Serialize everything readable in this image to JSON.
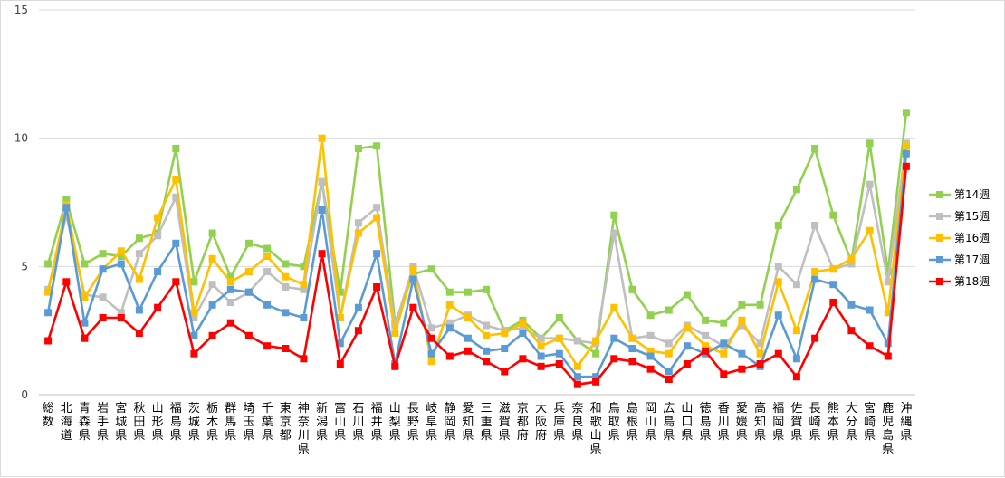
{
  "chart_data": {
    "type": "line",
    "title": "",
    "xlabel": "",
    "ylabel": "",
    "ylim": [
      0,
      15
    ],
    "yticks": [
      0,
      5,
      10,
      15
    ],
    "grid": true,
    "legend_position": "right",
    "categories": [
      "総数",
      "北海道",
      "青森県",
      "岩手県",
      "宮城県",
      "秋田県",
      "山形県",
      "福島県",
      "茨城県",
      "栃木県",
      "群馬県",
      "埼玉県",
      "千葉県",
      "東京都",
      "神奈川県",
      "新潟県",
      "富山県",
      "石川県",
      "福井県",
      "山梨県",
      "長野県",
      "岐阜県",
      "静岡県",
      "愛知県",
      "三重県",
      "滋賀県",
      "京都府",
      "大阪府",
      "兵庫県",
      "奈良県",
      "和歌山県",
      "鳥取県",
      "島根県",
      "岡山県",
      "広島県",
      "山口県",
      "徳島県",
      "香川県",
      "愛媛県",
      "高知県",
      "福岡県",
      "佐賀県",
      "長崎県",
      "熊本県",
      "大分県",
      "宮崎県",
      "鹿児島県",
      "沖縄県"
    ],
    "series": [
      {
        "name": "第14週",
        "color": "#92D050",
        "values": [
          5.1,
          7.6,
          5.1,
          5.5,
          5.4,
          6.1,
          6.3,
          9.6,
          4.4,
          6.3,
          4.6,
          5.9,
          5.7,
          5.1,
          5.0,
          8.3,
          4.0,
          9.6,
          9.7,
          2.8,
          4.7,
          4.9,
          4.0,
          4.0,
          4.1,
          2.5,
          2.9,
          2.2,
          3.0,
          2.1,
          1.6,
          7.0,
          4.1,
          3.1,
          3.3,
          3.9,
          2.9,
          2.8,
          3.5,
          3.5,
          6.6,
          8.0,
          9.6,
          7.0,
          5.2,
          9.8,
          4.8,
          11.0
        ]
      },
      {
        "name": "第15週",
        "color": "#BFBFBF",
        "values": [
          4.1,
          7.0,
          3.9,
          3.8,
          3.2,
          5.5,
          6.2,
          7.7,
          3.0,
          4.3,
          3.6,
          4.0,
          4.8,
          4.2,
          4.1,
          8.3,
          3.0,
          6.7,
          7.3,
          2.7,
          5.0,
          2.6,
          2.8,
          3.1,
          2.7,
          2.5,
          2.6,
          2.2,
          2.2,
          2.1,
          2.0,
          6.3,
          2.2,
          2.3,
          2.0,
          2.7,
          2.3,
          1.9,
          2.7,
          2.0,
          5.0,
          4.3,
          6.6,
          4.9,
          5.1,
          8.2,
          4.4,
          9.8
        ]
      },
      {
        "name": "第16週",
        "color": "#FFC000",
        "values": [
          4.0,
          7.4,
          3.8,
          4.9,
          5.6,
          4.5,
          6.9,
          8.4,
          3.2,
          5.3,
          4.4,
          4.8,
          5.4,
          4.6,
          4.3,
          10.0,
          3.0,
          6.3,
          6.9,
          2.4,
          4.9,
          1.3,
          3.5,
          3.0,
          2.3,
          2.4,
          2.8,
          1.9,
          2.2,
          1.1,
          2.1,
          3.4,
          2.2,
          1.7,
          1.6,
          2.6,
          1.9,
          1.6,
          2.9,
          1.6,
          4.4,
          2.5,
          4.8,
          4.9,
          5.3,
          6.4,
          3.2,
          9.7
        ]
      },
      {
        "name": "第17週",
        "color": "#5B9BD5",
        "values": [
          3.2,
          7.3,
          2.8,
          4.9,
          5.1,
          3.3,
          4.8,
          5.9,
          2.3,
          3.5,
          4.1,
          4.0,
          3.5,
          3.2,
          3.0,
          7.2,
          2.0,
          3.4,
          5.5,
          1.2,
          4.5,
          1.6,
          2.6,
          2.2,
          1.7,
          1.8,
          2.4,
          1.5,
          1.6,
          0.7,
          0.7,
          2.2,
          1.8,
          1.5,
          0.9,
          1.9,
          1.6,
          2.0,
          1.6,
          1.1,
          3.1,
          1.4,
          4.5,
          4.3,
          3.5,
          3.3,
          2.0,
          9.4
        ]
      },
      {
        "name": "第18週",
        "color": "#FF0000",
        "values": [
          2.1,
          4.4,
          2.2,
          3.0,
          3.0,
          2.4,
          3.4,
          4.4,
          1.6,
          2.3,
          2.8,
          2.3,
          1.9,
          1.8,
          1.4,
          5.5,
          1.2,
          2.5,
          4.2,
          1.1,
          3.4,
          2.2,
          1.5,
          1.7,
          1.3,
          0.9,
          1.4,
          1.1,
          1.2,
          0.4,
          0.5,
          1.4,
          1.3,
          1.0,
          0.6,
          1.2,
          1.7,
          0.8,
          1.0,
          1.2,
          1.6,
          0.7,
          2.2,
          3.6,
          2.5,
          1.9,
          1.5,
          8.9
        ]
      }
    ]
  }
}
